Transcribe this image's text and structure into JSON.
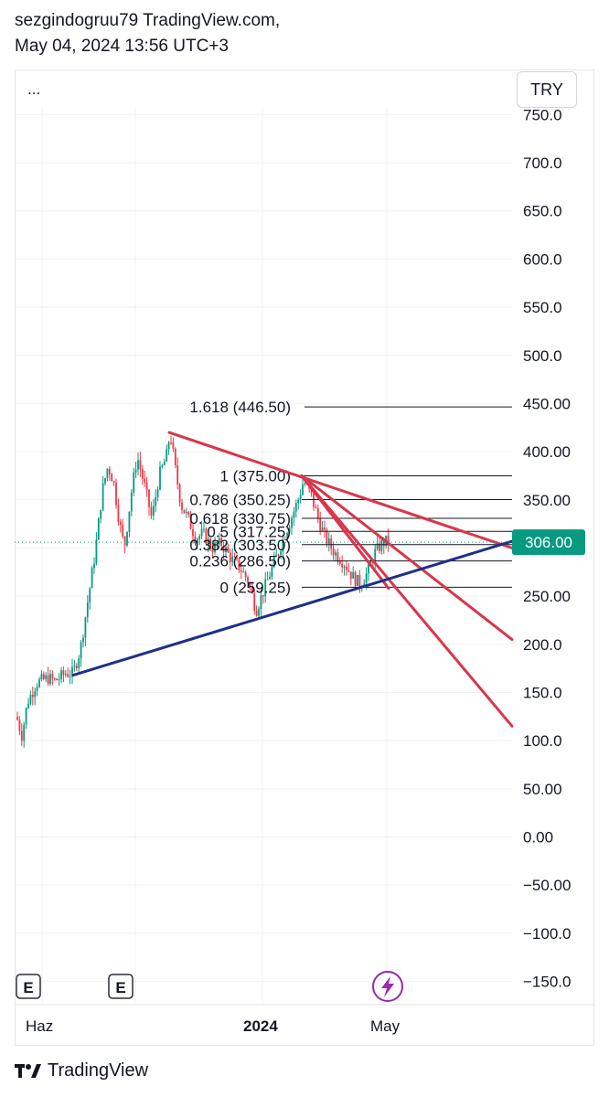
{
  "header": {
    "line1": "sezgindogruu79 TradingView.com,",
    "line2": "May 04, 2024 13:56 UTC+3"
  },
  "toolbar": {
    "menu_label": "...",
    "currency": "TRY"
  },
  "footer": {
    "brand": "TradingView"
  },
  "chart_data": {
    "type": "candlestick",
    "currency": "TRY",
    "price_axis": {
      "ticks": [
        "750.0",
        "700.0",
        "650.0",
        "600.0",
        "550.0",
        "500.0",
        "450.00",
        "400.00",
        "350.00",
        "300.00",
        "250.00",
        "200.0",
        "150.0",
        "100.0",
        "50.00",
        "0.00",
        "−50.00",
        "−100.0",
        "−150.0"
      ],
      "tick_values": [
        750,
        700,
        650,
        600,
        550,
        500,
        450,
        400,
        350,
        300,
        250,
        200,
        150,
        100,
        50,
        0,
        -50,
        -100,
        -150
      ],
      "ylim": [
        -165,
        760
      ]
    },
    "time_axis": {
      "ticks": [
        "Haz",
        "2024",
        "May"
      ]
    },
    "last_price": {
      "value": 306.0,
      "label": "306.00",
      "color": "#089981"
    },
    "fibonacci": [
      {
        "label": "1.618 (446.50)",
        "value": 446.5
      },
      {
        "label": "1 (375.00)",
        "value": 375.0
      },
      {
        "label": "0.786 (350.25)",
        "value": 350.25
      },
      {
        "label": "0.618 (330.75)",
        "value": 330.75
      },
      {
        "label": "0.5 (317.25)",
        "value": 317.25
      },
      {
        "label": "0.382 (303.50)",
        "value": 303.5
      },
      {
        "label": "0.236 (286.50)",
        "value": 286.5
      },
      {
        "label": "0 (259.25)",
        "value": 259.25
      }
    ],
    "event_markers": [
      "E",
      "E"
    ],
    "colors": {
      "up": "#089981",
      "down": "#f23645",
      "trend_red": "#d9364a",
      "trend_blue": "#1e2f8c",
      "fib": "#131722"
    }
  }
}
